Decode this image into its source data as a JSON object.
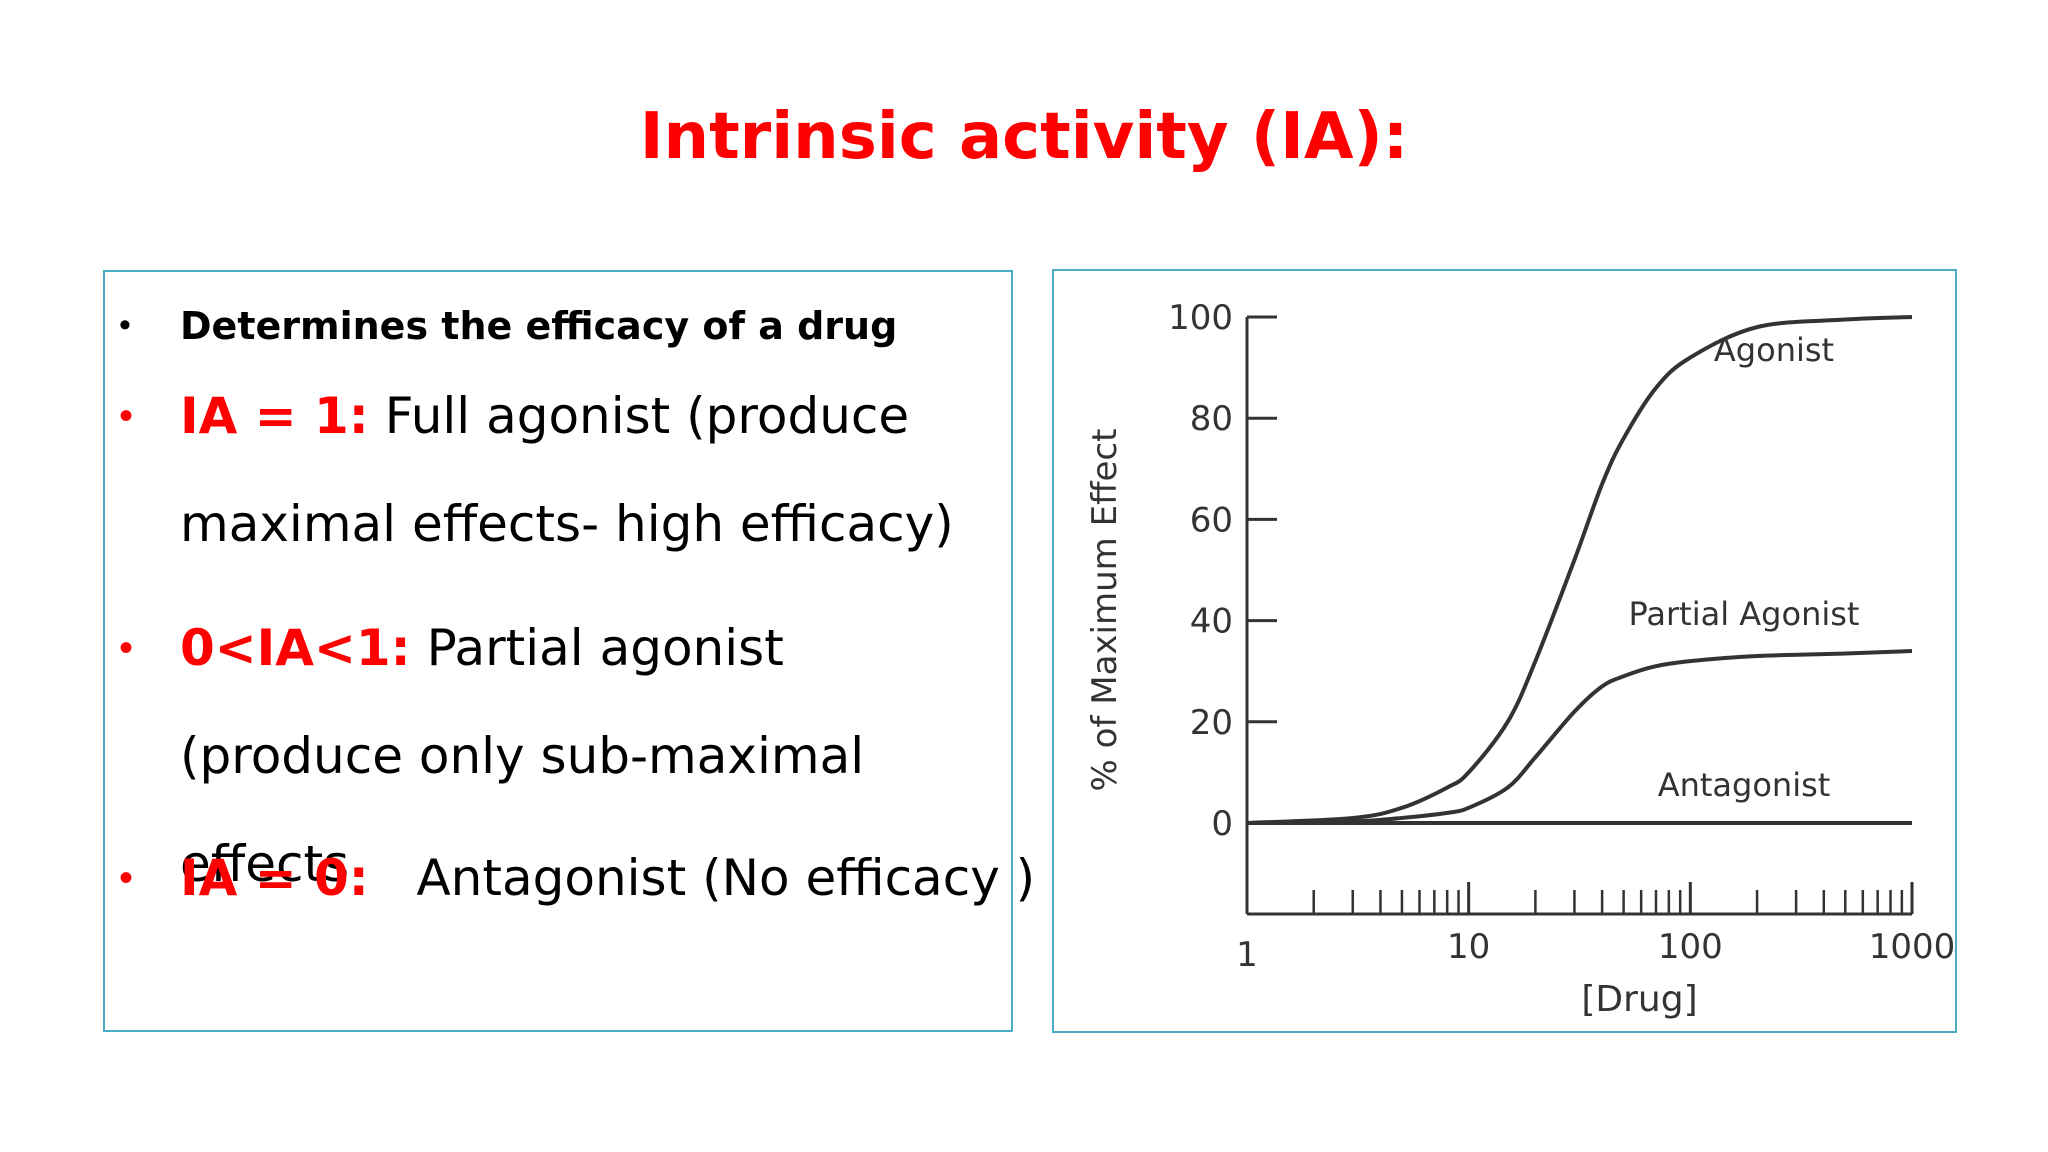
{
  "title": "Intrinsic activity (IA):",
  "bullets": [
    {
      "bullet_icon": "bullet-dot",
      "text": "Determines the efficacy of a drug"
    },
    {
      "bullet_icon": "bullet-dot",
      "highlight": "IA = 1:",
      "text": " Full agonist (produce maximal effects- high efficacy)"
    },
    {
      "bullet_icon": "bullet-dot",
      "highlight": "0<IA<1:",
      "text": " Partial agonist (produce only sub-maximal effects"
    },
    {
      "bullet_icon": "bullet-dot",
      "highlight": "IA = 0:",
      "text": "   Antagonist (No efficacy )"
    }
  ],
  "colors": {
    "highlight": "#ff0000",
    "border": "#4bacc6",
    "curve": "#333333"
  },
  "chart_data": {
    "type": "line",
    "xlabel": "[Drug]",
    "ylabel": "% of Maximum Effect",
    "x_scale": "log",
    "xlim": [
      1,
      1000
    ],
    "ylim": [
      0,
      100
    ],
    "x_ticks": [
      "1",
      "10",
      "100",
      "1000"
    ],
    "y_ticks": [
      "0",
      "20",
      "40",
      "60",
      "80",
      "100"
    ],
    "grid": false,
    "series": [
      {
        "name": "Agonist",
        "x": [
          1,
          3,
          5,
          8,
          10,
          15,
          20,
          30,
          40,
          50,
          70,
          100,
          200,
          500,
          1000
        ],
        "values": [
          0,
          1,
          3,
          7,
          10,
          20,
          32,
          52,
          67,
          76,
          86,
          92,
          98,
          99.5,
          100
        ]
      },
      {
        "name": "Partial Agonist",
        "x": [
          1,
          3,
          5,
          8,
          10,
          15,
          20,
          30,
          40,
          50,
          70,
          100,
          200,
          500,
          1000
        ],
        "values": [
          0,
          0.3,
          1,
          2,
          3,
          7,
          13,
          22,
          27,
          29,
          31,
          32,
          33,
          33.5,
          34
        ]
      },
      {
        "name": "Antagonist",
        "x": [
          1,
          1000
        ],
        "values": [
          0,
          0
        ]
      }
    ]
  }
}
